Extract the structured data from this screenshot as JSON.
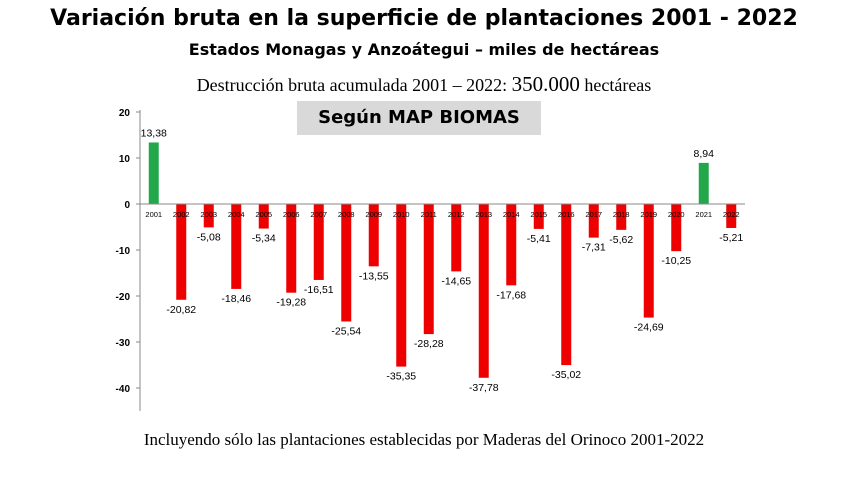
{
  "header": {
    "title": "Variación bruta en la superficie de plantaciones 2001 - 2022",
    "subtitle": "Estados Monagas y Anzoátegui – miles de hectáreas",
    "note_prefix": "Destrucción bruta acumulada 2001 – 2022:",
    "note_value": "350.000",
    "note_suffix": "hectáreas",
    "source_label": "Según MAP BIOMAS"
  },
  "footer": {
    "text": "Incluyendo sólo las plantaciones establecidas por Maderas del Orinoco 2001-2022"
  },
  "colors": {
    "positive": "#22a84a",
    "negative": "#ee0000",
    "axis": "#888888"
  },
  "chart_data": {
    "type": "bar",
    "title": "Variación bruta en la superficie de plantaciones 2001 - 2022",
    "xlabel": "",
    "ylabel": "",
    "ylim": [
      -45,
      20
    ],
    "yticks": [
      20,
      10,
      0,
      -10,
      -20,
      -30,
      -40
    ],
    "grid": false,
    "legend": "none",
    "categories": [
      "2001",
      "2002",
      "2003",
      "2004",
      "2005",
      "2006",
      "2007",
      "2008",
      "2009",
      "2010",
      "2011",
      "2012",
      "2013",
      "2014",
      "2015",
      "2016",
      "2017",
      "2018",
      "2019",
      "2020",
      "2021",
      "2022"
    ],
    "values": [
      13.38,
      -20.82,
      -5.08,
      -18.46,
      -5.34,
      -19.28,
      -16.51,
      -25.54,
      -13.55,
      -35.35,
      -28.28,
      -14.65,
      -37.78,
      -17.68,
      -5.41,
      -35.02,
      -7.31,
      -5.62,
      -24.69,
      -10.25,
      8.94,
      -5.21
    ],
    "labels": [
      "13,38",
      "-20,82",
      "-5,08",
      "-18,46",
      "-5,34",
      "-19,28",
      "-16,51",
      "-25,54",
      "-13,55",
      "-35,35",
      "-28,28",
      "-14,65",
      "-37,78",
      "-17,68",
      "-5,41",
      "-35,02",
      "-7,31",
      "-5,62",
      "-24,69",
      "-10,25",
      "8,94",
      "-5,21"
    ]
  }
}
